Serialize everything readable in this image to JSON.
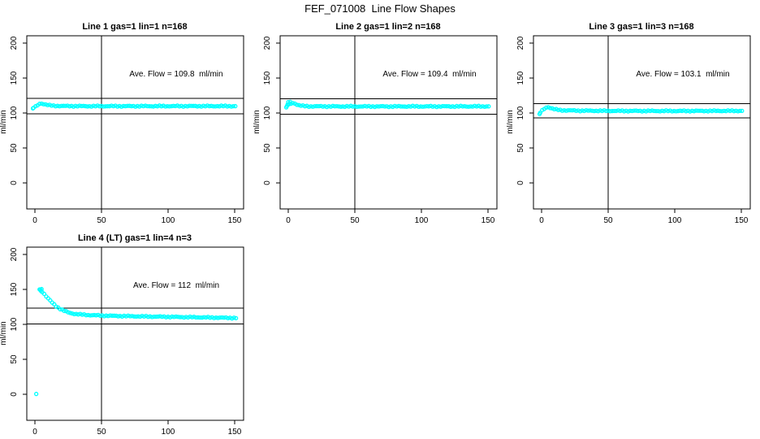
{
  "chart_data": {
    "type": "scatter",
    "title": "FEF_071008  Line Flow Shapes",
    "ylabel": "ml/min",
    "x_ticks": [
      0,
      50,
      100,
      150
    ],
    "y_ticks": [
      0,
      50,
      100,
      150,
      200
    ],
    "xlim": [
      -8,
      158
    ],
    "ylim": [
      -38,
      212
    ],
    "grid": false,
    "legend": "none",
    "point_color": "#00FFFF",
    "axis_color": "#000000",
    "vline_x": 50,
    "hline_rule": "avg_flow plus/minus 10%",
    "x_step": 1.5,
    "panels": [
      {
        "title": "Line 1 gas=1 lin=1 n=168",
        "n": 168,
        "avg_flow": 109.8,
        "annotation": "Ave. Flow = 109.8  ml/min",
        "hlines": [
          98.8,
          120.8
        ],
        "profile": [
          [
            -1,
            107.5
          ],
          [
            1,
            109.5
          ],
          [
            3,
            113
          ],
          [
            5,
            113.8
          ],
          [
            7,
            112.6
          ],
          [
            10,
            111.2
          ],
          [
            14,
            110.4
          ],
          [
            20,
            110
          ],
          [
            40,
            109.8
          ],
          [
            80,
            109.8
          ],
          [
            120,
            109.9
          ],
          [
            151,
            109.8
          ]
        ],
        "extra_points": [
          [
            -1.5,
            106.5
          ]
        ]
      },
      {
        "title": "Line 2 gas=1 lin=2 n=168",
        "n": 168,
        "avg_flow": 109.4,
        "annotation": "Ave. Flow = 109.4  ml/min",
        "hlines": [
          98.5,
          120.3
        ],
        "profile": [
          [
            -1,
            110
          ],
          [
            1,
            112.5
          ],
          [
            3,
            114.5
          ],
          [
            5,
            113.8
          ],
          [
            7,
            111.5
          ],
          [
            10,
            110.2
          ],
          [
            15,
            109.6
          ],
          [
            40,
            109.4
          ],
          [
            80,
            109.4
          ],
          [
            151,
            109.5
          ]
        ],
        "extra_points": [
          [
            -1.5,
            108
          ],
          [
            0,
            115.5
          ],
          [
            1.5,
            116
          ],
          [
            -0.5,
            112
          ]
        ]
      },
      {
        "title": "Line 3 gas=1 lin=3 n=168",
        "n": 168,
        "avg_flow": 103.1,
        "annotation": "Ave. Flow = 103.1  ml/min",
        "hlines": [
          92.8,
          113.4
        ],
        "profile": [
          [
            -1,
            100.5
          ],
          [
            1,
            104.5
          ],
          [
            3,
            107.5
          ],
          [
            5,
            108.6
          ],
          [
            7,
            107
          ],
          [
            10,
            105.2
          ],
          [
            15,
            103.9
          ],
          [
            30,
            103.3
          ],
          [
            60,
            103
          ],
          [
            100,
            102.9
          ],
          [
            151,
            103.1
          ]
        ],
        "extra_points": [
          [
            -1.5,
            98.5
          ]
        ]
      },
      {
        "title": "Line 4 (LT) gas=1 lin=4 n=3",
        "n": 3,
        "avg_flow": 112,
        "annotation": "Ave. Flow = 112  ml/min",
        "hlines": [
          100.8,
          123.2
        ],
        "profile": [
          [
            4,
            149.5
          ],
          [
            6,
            146
          ],
          [
            8,
            141
          ],
          [
            10,
            136.8
          ],
          [
            12,
            133
          ],
          [
            14,
            129.3
          ],
          [
            16,
            126
          ],
          [
            18,
            123.3
          ],
          [
            20,
            121
          ],
          [
            23,
            118.5
          ],
          [
            26,
            116.6
          ],
          [
            30,
            115
          ],
          [
            35,
            114
          ],
          [
            40,
            113.4
          ],
          [
            50,
            112.6
          ],
          [
            60,
            112.1
          ],
          [
            80,
            111.4
          ],
          [
            100,
            110.8
          ],
          [
            120,
            110.2
          ],
          [
            135,
            109.7
          ],
          [
            151,
            109.2
          ]
        ],
        "extra_points": [
          [
            1,
            0.5
          ],
          [
            3.5,
            150
          ],
          [
            4.5,
            148
          ],
          [
            5,
            150.5
          ]
        ]
      }
    ]
  }
}
